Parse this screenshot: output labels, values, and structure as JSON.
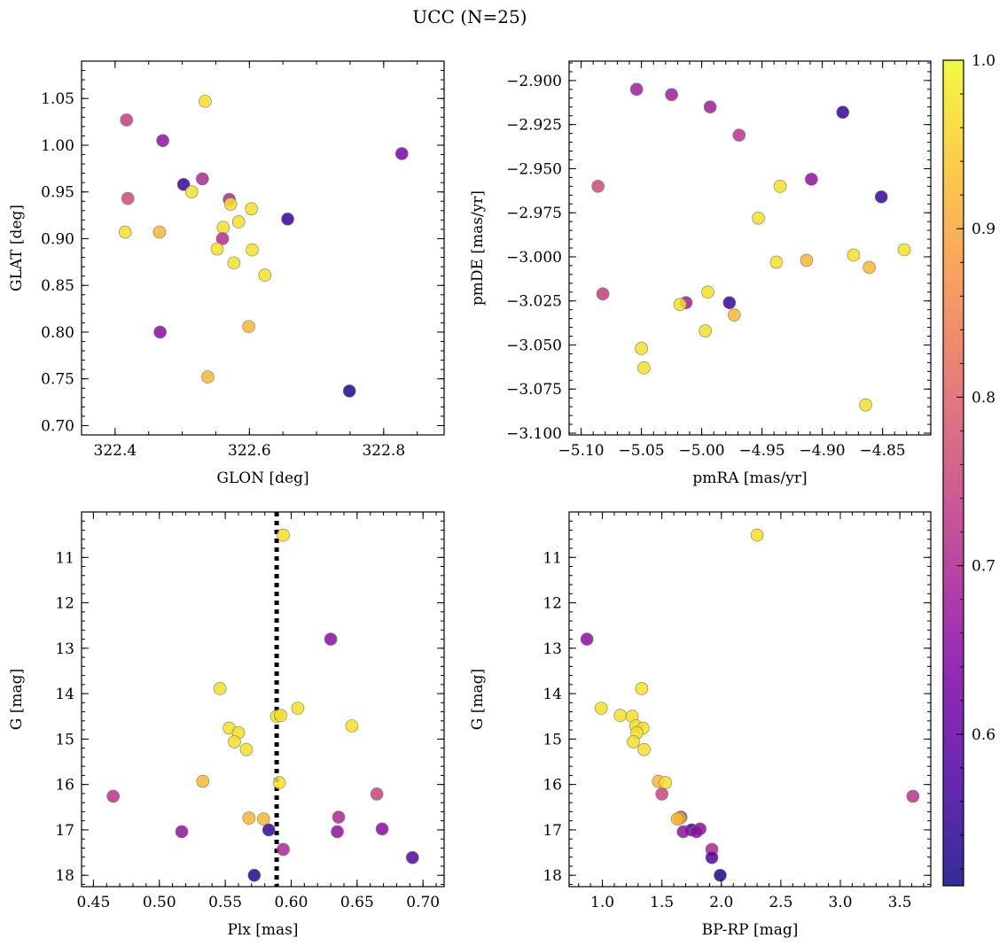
{
  "figure": {
    "title": "UCC (N=25)"
  },
  "colorbar": {
    "min": 0.51,
    "max": 1.0,
    "ticks": [
      {
        "value": 0.6,
        "label": "0.6"
      },
      {
        "value": 0.7,
        "label": "0.7"
      },
      {
        "value": 0.8,
        "label": "0.8"
      },
      {
        "value": 0.9,
        "label": "0.9"
      },
      {
        "value": 1.0,
        "label": "1.0"
      }
    ],
    "colormap": "plasma"
  },
  "chart_data": [
    {
      "type": "scatter",
      "xlabel": "GLON [deg]",
      "ylabel": "GLAT [deg]",
      "xlim": [
        322.35,
        322.89
      ],
      "ylim": [
        0.69,
        1.09
      ],
      "xticks": [
        {
          "value": 322.4,
          "label": "322.4"
        },
        {
          "value": 322.6,
          "label": "322.6"
        },
        {
          "value": 322.8,
          "label": "322.8"
        }
      ],
      "yticks": [
        {
          "value": 0.7,
          "label": "0.70"
        },
        {
          "value": 0.75,
          "label": "0.75"
        },
        {
          "value": 0.8,
          "label": "0.80"
        },
        {
          "value": 0.85,
          "label": "0.85"
        },
        {
          "value": 0.9,
          "label": "0.90"
        },
        {
          "value": 0.95,
          "label": "0.95"
        },
        {
          "value": 1.0,
          "label": "1.00"
        },
        {
          "value": 1.05,
          "label": "1.05"
        }
      ],
      "x_minor_step": 0.05,
      "y_minor_step": 0.01,
      "points": [
        {
          "x": 322.534,
          "y": 1.047,
          "c": 0.97
        },
        {
          "x": 322.417,
          "y": 1.027,
          "c": 0.74
        },
        {
          "x": 322.471,
          "y": 1.005,
          "c": 0.66
        },
        {
          "x": 322.827,
          "y": 0.991,
          "c": 0.63
        },
        {
          "x": 322.53,
          "y": 0.964,
          "c": 0.7
        },
        {
          "x": 322.502,
          "y": 0.958,
          "c": 0.55
        },
        {
          "x": 322.514,
          "y": 0.95,
          "c": 0.97
        },
        {
          "x": 322.419,
          "y": 0.943,
          "c": 0.76
        },
        {
          "x": 322.57,
          "y": 0.942,
          "c": 0.7
        },
        {
          "x": 322.572,
          "y": 0.937,
          "c": 0.97
        },
        {
          "x": 322.603,
          "y": 0.932,
          "c": 0.97
        },
        {
          "x": 322.657,
          "y": 0.921,
          "c": 0.55
        },
        {
          "x": 322.584,
          "y": 0.918,
          "c": 0.97
        },
        {
          "x": 322.561,
          "y": 0.912,
          "c": 0.97
        },
        {
          "x": 322.415,
          "y": 0.907,
          "c": 0.97
        },
        {
          "x": 322.466,
          "y": 0.907,
          "c": 0.92
        },
        {
          "x": 322.56,
          "y": 0.9,
          "c": 0.71
        },
        {
          "x": 322.552,
          "y": 0.889,
          "c": 0.97
        },
        {
          "x": 322.604,
          "y": 0.888,
          "c": 0.97
        },
        {
          "x": 322.577,
          "y": 0.874,
          "c": 0.97
        },
        {
          "x": 322.623,
          "y": 0.861,
          "c": 0.97
        },
        {
          "x": 322.599,
          "y": 0.806,
          "c": 0.92
        },
        {
          "x": 322.467,
          "y": 0.8,
          "c": 0.65
        },
        {
          "x": 322.538,
          "y": 0.752,
          "c": 0.92
        },
        {
          "x": 322.749,
          "y": 0.737,
          "c": 0.53
        }
      ]
    },
    {
      "type": "scatter",
      "xlabel": "pmRA [mas/yr]",
      "ylabel": "pmDE [mas/yr]",
      "xlim": [
        -5.11,
        -4.81
      ],
      "ylim": [
        -3.101,
        -2.889
      ],
      "xticks": [
        {
          "value": -5.1,
          "label": "−5.10"
        },
        {
          "value": -5.05,
          "label": "−5.05"
        },
        {
          "value": -5.0,
          "label": "−5.00"
        },
        {
          "value": -4.95,
          "label": "−4.95"
        },
        {
          "value": -4.9,
          "label": "−4.90"
        },
        {
          "value": -4.85,
          "label": "−4.85"
        }
      ],
      "yticks": [
        {
          "value": -2.9,
          "label": "−2.900"
        },
        {
          "value": -2.925,
          "label": "−2.925"
        },
        {
          "value": -2.95,
          "label": "−2.950"
        },
        {
          "value": -2.975,
          "label": "−2.975"
        },
        {
          "value": -3.0,
          "label": "−3.000"
        },
        {
          "value": -3.025,
          "label": "−3.025"
        },
        {
          "value": -3.05,
          "label": "−3.050"
        },
        {
          "value": -3.075,
          "label": "−3.075"
        },
        {
          "value": -3.1,
          "label": "−3.100"
        }
      ],
      "x_minor_step": 0.01,
      "y_minor_step": 0.005,
      "points": [
        {
          "x": -5.054,
          "y": -2.905,
          "c": 0.68
        },
        {
          "x": -5.025,
          "y": -2.908,
          "c": 0.68
        },
        {
          "x": -4.993,
          "y": -2.915,
          "c": 0.68
        },
        {
          "x": -4.883,
          "y": -2.918,
          "c": 0.55
        },
        {
          "x": -4.969,
          "y": -2.931,
          "c": 0.72
        },
        {
          "x": -4.909,
          "y": -2.956,
          "c": 0.66
        },
        {
          "x": -4.935,
          "y": -2.96,
          "c": 0.97
        },
        {
          "x": -5.086,
          "y": -2.96,
          "c": 0.76
        },
        {
          "x": -4.851,
          "y": -2.966,
          "c": 0.55
        },
        {
          "x": -4.953,
          "y": -2.978,
          "c": 0.97
        },
        {
          "x": -4.832,
          "y": -2.996,
          "c": 0.97
        },
        {
          "x": -4.874,
          "y": -2.999,
          "c": 0.97
        },
        {
          "x": -4.913,
          "y": -3.002,
          "c": 0.92
        },
        {
          "x": -4.938,
          "y": -3.003,
          "c": 0.97
        },
        {
          "x": -4.861,
          "y": -3.006,
          "c": 0.92
        },
        {
          "x": -5.082,
          "y": -3.021,
          "c": 0.74
        },
        {
          "x": -4.995,
          "y": -3.02,
          "c": 0.97
        },
        {
          "x": -5.013,
          "y": -3.026,
          "c": 0.68
        },
        {
          "x": -5.018,
          "y": -3.027,
          "c": 0.97
        },
        {
          "x": -4.977,
          "y": -3.026,
          "c": 0.55
        },
        {
          "x": -4.973,
          "y": -3.033,
          "c": 0.92
        },
        {
          "x": -4.997,
          "y": -3.042,
          "c": 0.97
        },
        {
          "x": -5.05,
          "y": -3.052,
          "c": 0.97
        },
        {
          "x": -5.048,
          "y": -3.063,
          "c": 0.97
        },
        {
          "x": -4.864,
          "y": -3.084,
          "c": 0.97
        }
      ]
    },
    {
      "type": "scatter",
      "xlabel": "Plx [mas]",
      "ylabel": "G [mag]",
      "xlim": [
        0.441,
        0.716
      ],
      "ylim": [
        18.25,
        10.0
      ],
      "y_inverted": true,
      "xticks": [
        {
          "value": 0.45,
          "label": "0.45"
        },
        {
          "value": 0.5,
          "label": "0.50"
        },
        {
          "value": 0.55,
          "label": "0.55"
        },
        {
          "value": 0.6,
          "label": "0.60"
        },
        {
          "value": 0.65,
          "label": "0.65"
        },
        {
          "value": 0.7,
          "label": "0.70"
        }
      ],
      "yticks": [
        {
          "value": 11,
          "label": "11"
        },
        {
          "value": 12,
          "label": "12"
        },
        {
          "value": 13,
          "label": "13"
        },
        {
          "value": 14,
          "label": "14"
        },
        {
          "value": 15,
          "label": "15"
        },
        {
          "value": 16,
          "label": "16"
        },
        {
          "value": 17,
          "label": "17"
        },
        {
          "value": 18,
          "label": "18"
        }
      ],
      "x_minor_step": 0.01,
      "y_minor_step": 0.2,
      "vline": {
        "x": 0.589,
        "style": "dotted",
        "color": "#000000"
      },
      "points": [
        {
          "x": 0.594,
          "y": 10.51,
          "c": 0.97
        },
        {
          "x": 0.63,
          "y": 12.8,
          "c": 0.65
        },
        {
          "x": 0.546,
          "y": 13.89,
          "c": 0.97
        },
        {
          "x": 0.605,
          "y": 14.32,
          "c": 0.97
        },
        {
          "x": 0.589,
          "y": 14.5,
          "c": 0.97
        },
        {
          "x": 0.592,
          "y": 14.48,
          "c": 0.97
        },
        {
          "x": 0.646,
          "y": 14.71,
          "c": 0.97
        },
        {
          "x": 0.553,
          "y": 14.76,
          "c": 0.97
        },
        {
          "x": 0.56,
          "y": 14.86,
          "c": 0.97
        },
        {
          "x": 0.557,
          "y": 15.06,
          "c": 0.97
        },
        {
          "x": 0.566,
          "y": 15.23,
          "c": 0.97
        },
        {
          "x": 0.533,
          "y": 15.93,
          "c": 0.92
        },
        {
          "x": 0.591,
          "y": 15.96,
          "c": 0.97
        },
        {
          "x": 0.665,
          "y": 16.21,
          "c": 0.75
        },
        {
          "x": 0.465,
          "y": 16.26,
          "c": 0.72
        },
        {
          "x": 0.636,
          "y": 16.72,
          "c": 0.7
        },
        {
          "x": 0.568,
          "y": 16.74,
          "c": 0.92
        },
        {
          "x": 0.579,
          "y": 16.76,
          "c": 0.92
        },
        {
          "x": 0.669,
          "y": 16.98,
          "c": 0.65
        },
        {
          "x": 0.583,
          "y": 17.0,
          "c": 0.55
        },
        {
          "x": 0.517,
          "y": 17.04,
          "c": 0.66
        },
        {
          "x": 0.635,
          "y": 17.04,
          "c": 0.66
        },
        {
          "x": 0.594,
          "y": 17.43,
          "c": 0.7
        },
        {
          "x": 0.692,
          "y": 17.61,
          "c": 0.58
        },
        {
          "x": 0.572,
          "y": 18.0,
          "c": 0.53
        }
      ]
    },
    {
      "type": "scatter",
      "xlabel": "BP-RP [mag]",
      "ylabel": "G [mag]",
      "xlim": [
        0.72,
        3.76
      ],
      "ylim": [
        18.25,
        10.0
      ],
      "y_inverted": true,
      "xticks": [
        {
          "value": 1.0,
          "label": "1.0"
        },
        {
          "value": 1.5,
          "label": "1.5"
        },
        {
          "value": 2.0,
          "label": "2.0"
        },
        {
          "value": 2.5,
          "label": "2.5"
        },
        {
          "value": 3.0,
          "label": "3.0"
        },
        {
          "value": 3.5,
          "label": "3.5"
        }
      ],
      "yticks": [
        {
          "value": 11,
          "label": "11"
        },
        {
          "value": 12,
          "label": "12"
        },
        {
          "value": 13,
          "label": "13"
        },
        {
          "value": 14,
          "label": "14"
        },
        {
          "value": 15,
          "label": "15"
        },
        {
          "value": 16,
          "label": "16"
        },
        {
          "value": 17,
          "label": "17"
        },
        {
          "value": 18,
          "label": "18"
        }
      ],
      "x_minor_step": 0.1,
      "y_minor_step": 0.2,
      "points": [
        {
          "x": 2.3,
          "y": 10.51,
          "c": 0.97
        },
        {
          "x": 0.87,
          "y": 12.8,
          "c": 0.65
        },
        {
          "x": 1.33,
          "y": 13.89,
          "c": 0.97
        },
        {
          "x": 0.99,
          "y": 14.32,
          "c": 0.97
        },
        {
          "x": 1.15,
          "y": 14.48,
          "c": 0.97
        },
        {
          "x": 1.25,
          "y": 14.5,
          "c": 0.97
        },
        {
          "x": 1.28,
          "y": 14.71,
          "c": 0.97
        },
        {
          "x": 1.34,
          "y": 14.76,
          "c": 0.97
        },
        {
          "x": 1.29,
          "y": 14.86,
          "c": 0.97
        },
        {
          "x": 1.26,
          "y": 15.06,
          "c": 0.97
        },
        {
          "x": 1.35,
          "y": 15.23,
          "c": 0.97
        },
        {
          "x": 1.47,
          "y": 15.93,
          "c": 0.92
        },
        {
          "x": 1.53,
          "y": 15.96,
          "c": 0.97
        },
        {
          "x": 1.5,
          "y": 16.21,
          "c": 0.75
        },
        {
          "x": 3.61,
          "y": 16.26,
          "c": 0.72
        },
        {
          "x": 1.66,
          "y": 16.72,
          "c": 0.7
        },
        {
          "x": 1.65,
          "y": 16.74,
          "c": 0.92
        },
        {
          "x": 1.63,
          "y": 16.76,
          "c": 0.92
        },
        {
          "x": 1.82,
          "y": 16.98,
          "c": 0.65
        },
        {
          "x": 1.75,
          "y": 17.0,
          "c": 0.55
        },
        {
          "x": 1.68,
          "y": 17.04,
          "c": 0.66
        },
        {
          "x": 1.79,
          "y": 17.04,
          "c": 0.66
        },
        {
          "x": 1.92,
          "y": 17.43,
          "c": 0.7
        },
        {
          "x": 1.92,
          "y": 17.61,
          "c": 0.58
        },
        {
          "x": 1.99,
          "y": 18.0,
          "c": 0.53
        }
      ]
    }
  ]
}
